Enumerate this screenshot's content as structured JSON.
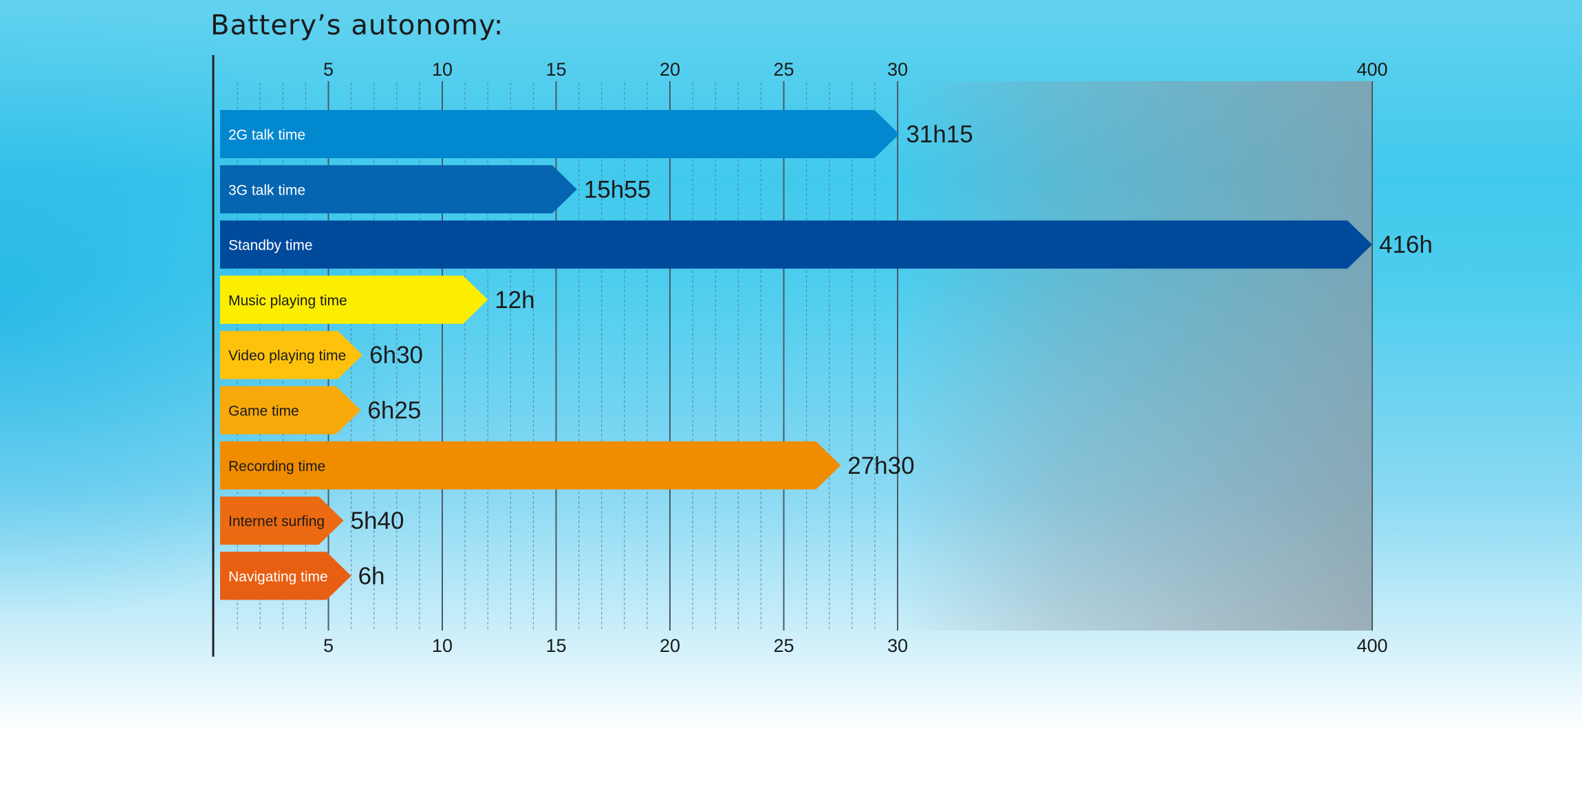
{
  "title": "Battery’s autonomy:",
  "chart_data": {
    "type": "bar",
    "orientation": "horizontal",
    "title": "Battery’s autonomy:",
    "xlabel": "",
    "ylabel": "",
    "x_axis": {
      "scale": "broken",
      "segments": [
        [
          0,
          30
        ],
        [
          30,
          400
        ]
      ],
      "ticks": [
        5,
        10,
        15,
        20,
        25,
        30,
        400
      ],
      "tick_labels": [
        "5",
        "10",
        "15",
        "20",
        "25",
        "30",
        "400"
      ],
      "position": "top-and-bottom"
    },
    "grid": true,
    "categories": [
      "2G talk time",
      "3G talk time",
      "Standby time",
      "Music playing time",
      "Video playing time",
      "Game time",
      "Recording time",
      "Internet surfing",
      "Navigating time"
    ],
    "values": [
      31.25,
      15.917,
      416,
      12,
      6.5,
      6.417,
      27.5,
      5.667,
      6
    ],
    "data_labels": [
      "31h15",
      "15h55",
      "416h",
      "12h",
      "6h30",
      "6h25",
      "27h30",
      "5h40",
      "6h"
    ],
    "colors": [
      "#0288cf",
      "#0565b0",
      "#004a9c",
      "#fcee00",
      "#fec20c",
      "#f7a90a",
      "#f08c00",
      "#ec6a11",
      "#e85e12"
    ],
    "label_colors": [
      "#ffffff",
      "#ffffff",
      "#ffffff",
      "#1a1a1a",
      "#1a1a1a",
      "#1a1a1a",
      "#1a1a1a",
      "#1a1a1a",
      "#ffffff"
    ]
  }
}
